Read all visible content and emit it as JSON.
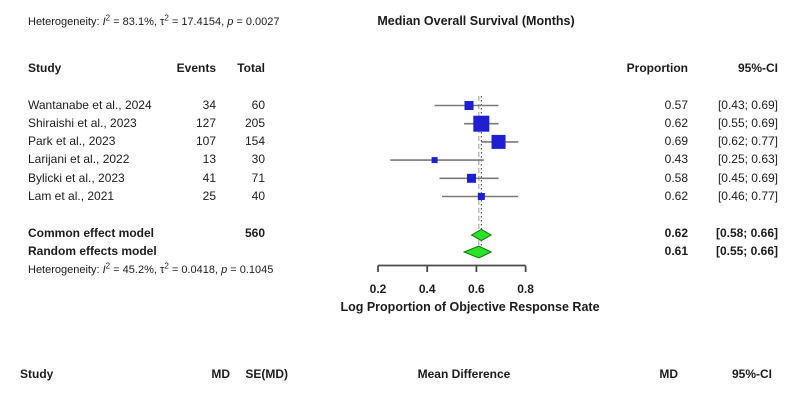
{
  "colors": {
    "square": "#1f1fd1",
    "diamond": "#2be22b",
    "diamond_border": "#0b7a0b",
    "ci_line": "#7a7a7a",
    "axis": "#4a4a4a",
    "common_ref_line": "#3a3a3a",
    "random_ref_line": "#9a9a9a"
  },
  "top_section": {
    "heterogeneity": {
      "prefix": "Heterogeneity: ",
      "i_sym": "I",
      "i_sup": "2",
      "seg1": " = 83.1%, ",
      "tau_sym": "τ",
      "tau_sup": "2",
      "seg2": " = 17.4154, ",
      "p_sym": "p",
      "seg3": " = 0.0027"
    },
    "xlabel": "Median Overall Survival (Months)"
  },
  "main_plot": {
    "headers": {
      "study": "Study",
      "events": "Events",
      "total": "Total",
      "proportion": "Proportion",
      "ci": "95%-CI"
    },
    "rows": [
      {
        "study": "Wantanabe et al., 2024",
        "events": "34",
        "total": "60",
        "proportion": "0.57",
        "ci": "[0.43; 0.69]"
      },
      {
        "study": "Shiraishi et al., 2023",
        "events": "127",
        "total": "205",
        "proportion": "0.62",
        "ci": "[0.55; 0.69]"
      },
      {
        "study": "Park et al., 2023",
        "events": "107",
        "total": "154",
        "proportion": "0.69",
        "ci": "[0.62; 0.77]"
      },
      {
        "study": "Larijani et al., 2022",
        "events": "13",
        "total": "30",
        "proportion": "0.43",
        "ci": "[0.25; 0.63]"
      },
      {
        "study": "Bylicki et al., 2023",
        "events": "41",
        "total": "71",
        "proportion": "0.58",
        "ci": "[0.45; 0.69]"
      },
      {
        "study": "Lam et al., 2021",
        "events": "25",
        "total": "40",
        "proportion": "0.62",
        "ci": "[0.46; 0.77]"
      }
    ],
    "common_row": {
      "label": "Common effect model",
      "total": "560",
      "proportion": "0.62",
      "ci": "[0.58; 0.66]"
    },
    "random_row": {
      "label": "Random effects model",
      "proportion": "0.61",
      "ci": "[0.55; 0.66]"
    },
    "heterogeneity": {
      "prefix": "Heterogeneity: ",
      "i_sym": "I",
      "i_sup": "2",
      "seg1": " = 45.2%, ",
      "tau_sym": "τ",
      "tau_sup": "2",
      "seg2": " = 0.0418, ",
      "p_sym": "p",
      "seg3": " = 0.1045"
    },
    "axis_ticks": [
      "0.2",
      "0.4",
      "0.6",
      "0.8"
    ],
    "xlabel": "Log Proportion of Objective Response Rate"
  },
  "bottom_section": {
    "headers": {
      "study": "Study",
      "md": "MD",
      "se_md": "SE(MD)",
      "effect_label": "Mean Difference",
      "md_col": "MD",
      "ci": "95%-CI"
    }
  },
  "chart_data": {
    "type": "scatter",
    "subtype": "forest-plot",
    "title": "",
    "xlabel": "Log Proportion of Objective Response Rate",
    "xlim": [
      0.2,
      0.8
    ],
    "x_ticks": [
      0.2,
      0.4,
      0.6,
      0.8
    ],
    "studies": [
      {
        "name": "Wantanabe et al., 2024",
        "events": 34,
        "total": 60,
        "proportion": 0.57,
        "ci": [
          0.43,
          0.69
        ]
      },
      {
        "name": "Shiraishi et al., 2023",
        "events": 127,
        "total": 205,
        "proportion": 0.62,
        "ci": [
          0.55,
          0.69
        ]
      },
      {
        "name": "Park et al., 2023",
        "events": 107,
        "total": 154,
        "proportion": 0.69,
        "ci": [
          0.62,
          0.77
        ]
      },
      {
        "name": "Larijani et al., 2022",
        "events": 13,
        "total": 30,
        "proportion": 0.43,
        "ci": [
          0.25,
          0.63
        ]
      },
      {
        "name": "Bylicki et al., 2023",
        "events": 41,
        "total": 71,
        "proportion": 0.58,
        "ci": [
          0.45,
          0.69
        ]
      },
      {
        "name": "Lam et al., 2021",
        "events": 25,
        "total": 40,
        "proportion": 0.62,
        "ci": [
          0.46,
          0.77
        ]
      }
    ],
    "common_effect": {
      "label": "Common effect model",
      "total": 560,
      "estimate": 0.62,
      "ci": [
        0.58,
        0.66
      ]
    },
    "random_effects": {
      "label": "Random effects model",
      "estimate": 0.61,
      "ci": [
        0.55,
        0.66
      ]
    },
    "heterogeneity_main": {
      "I2": "45.2%",
      "tau2": 0.0418,
      "p": 0.1045
    },
    "heterogeneity_top": {
      "I2": "83.1%",
      "tau2": 17.4154,
      "p": 0.0027
    },
    "legend_position": "none",
    "grid": false
  }
}
